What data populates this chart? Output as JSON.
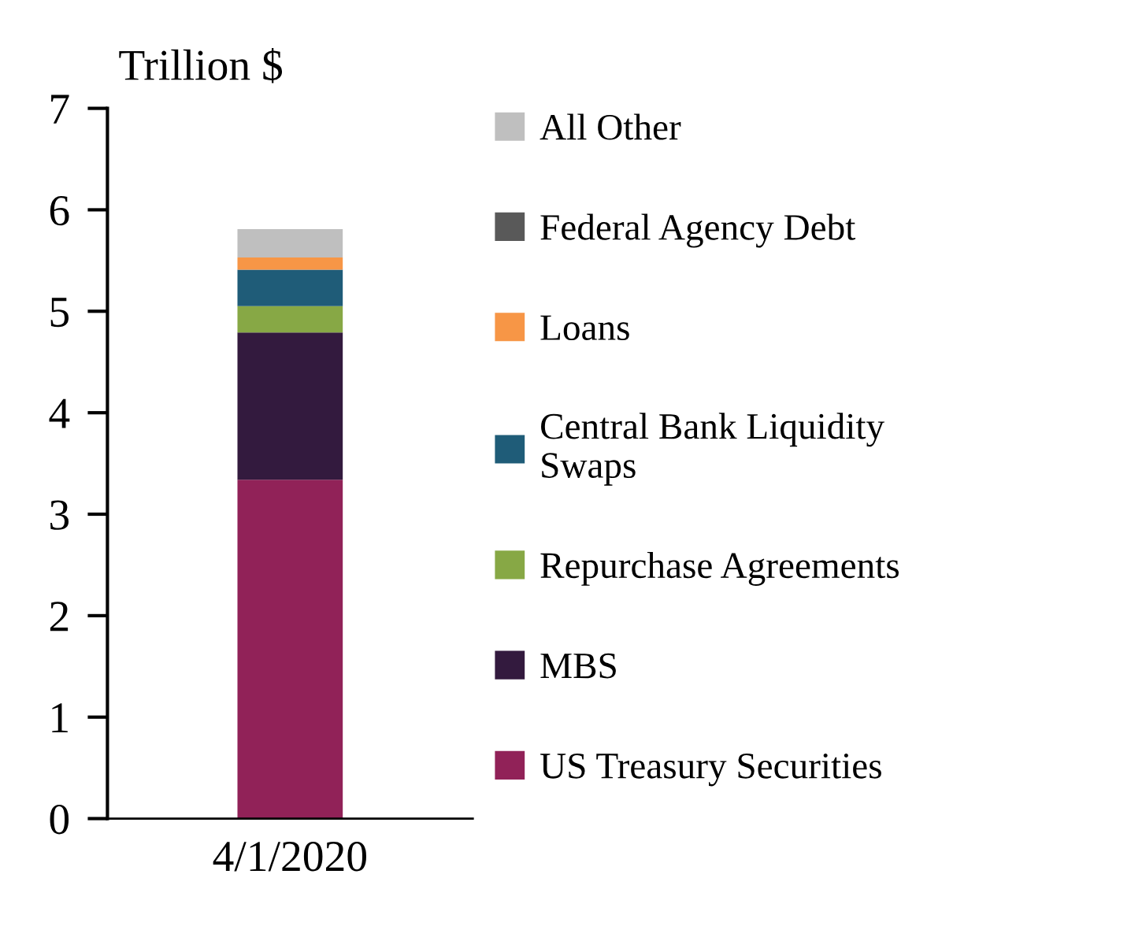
{
  "chart_data": {
    "type": "bar",
    "stacked": true,
    "ylabel": "Trillion $",
    "categories": [
      "4/1/2020"
    ],
    "series": [
      {
        "name": "US Treasury Securities",
        "color": "#912258",
        "values": [
          3.34
        ]
      },
      {
        "name": "MBS",
        "color": "#331a3e",
        "values": [
          1.45
        ]
      },
      {
        "name": "Repurchase Agreements",
        "color": "#87a845",
        "values": [
          0.26
        ]
      },
      {
        "name": "Central Bank Liquidity\nSwaps",
        "color": "#1f5c78",
        "values": [
          0.36
        ]
      },
      {
        "name": "Loans",
        "color": "#f79646",
        "values": [
          0.12
        ]
      },
      {
        "name": "Federal Agency Debt",
        "color": "#595959",
        "values": [
          0.0
        ]
      },
      {
        "name": "All Other",
        "color": "#bfbfbf",
        "values": [
          0.28
        ]
      }
    ],
    "ylim": [
      0,
      7
    ],
    "yticks": [
      0,
      1,
      2,
      3,
      4,
      5,
      6,
      7
    ],
    "grid": false,
    "legend": "right"
  }
}
